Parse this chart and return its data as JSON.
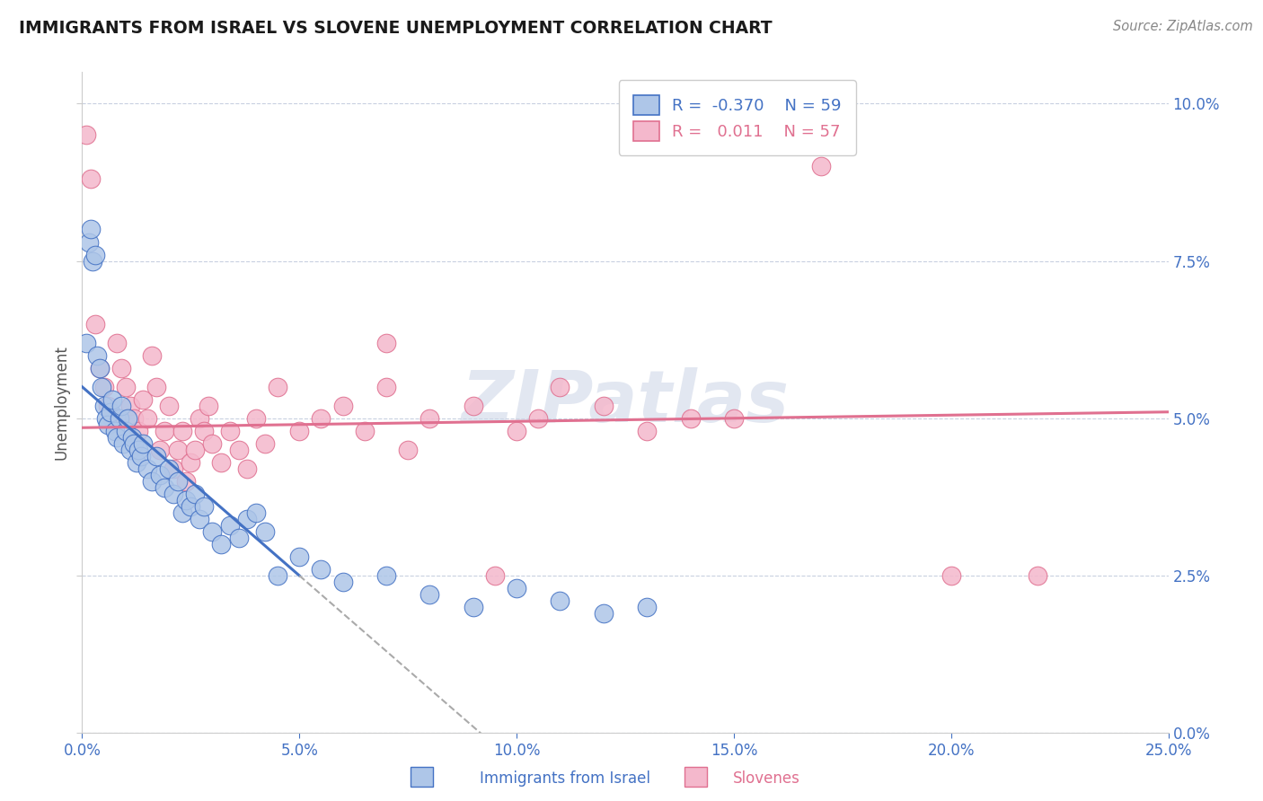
{
  "title": "IMMIGRANTS FROM ISRAEL VS SLOVENE UNEMPLOYMENT CORRELATION CHART",
  "source_text": "Source: ZipAtlas.com",
  "ylabel_label": "Unemployment",
  "legend_label1": "Immigrants from Israel",
  "legend_label2": "Slovenes",
  "R1": -0.37,
  "N1": 59,
  "R2": 0.011,
  "N2": 57,
  "color_blue": "#aec6e8",
  "color_pink": "#f4b8cc",
  "line_blue": "#4472c4",
  "line_pink": "#e07090",
  "watermark": "ZIPatlas",
  "xlim": [
    0.0,
    25.0
  ],
  "ylim": [
    0.0,
    10.5
  ],
  "xticks": [
    0.0,
    5.0,
    10.0,
    15.0,
    20.0,
    25.0
  ],
  "xticklabels": [
    "0.0%",
    "5.0%",
    "10.0%",
    "15.0%",
    "20.0%",
    "25.0%"
  ],
  "yticks": [
    0.0,
    2.5,
    5.0,
    7.5,
    10.0
  ],
  "yticklabels": [
    "0.0%",
    "2.5%",
    "5.0%",
    "7.5%",
    "10.0%"
  ],
  "figsize": [
    14.06,
    8.92
  ],
  "dpi": 100,
  "blue_x": [
    0.1,
    0.15,
    0.2,
    0.25,
    0.3,
    0.35,
    0.4,
    0.45,
    0.5,
    0.55,
    0.6,
    0.65,
    0.7,
    0.75,
    0.8,
    0.85,
    0.9,
    0.95,
    1.0,
    1.05,
    1.1,
    1.15,
    1.2,
    1.25,
    1.3,
    1.35,
    1.4,
    1.5,
    1.6,
    1.7,
    1.8,
    1.9,
    2.0,
    2.1,
    2.2,
    2.3,
    2.4,
    2.5,
    2.6,
    2.7,
    2.8,
    3.0,
    3.2,
    3.4,
    3.6,
    3.8,
    4.0,
    4.2,
    4.5,
    5.0,
    5.5,
    6.0,
    7.0,
    8.0,
    9.0,
    10.0,
    11.0,
    12.0,
    13.0
  ],
  "blue_y": [
    6.2,
    7.8,
    8.0,
    7.5,
    7.6,
    6.0,
    5.8,
    5.5,
    5.2,
    5.0,
    4.9,
    5.1,
    5.3,
    4.8,
    4.7,
    5.0,
    5.2,
    4.6,
    4.8,
    5.0,
    4.5,
    4.7,
    4.6,
    4.3,
    4.5,
    4.4,
    4.6,
    4.2,
    4.0,
    4.4,
    4.1,
    3.9,
    4.2,
    3.8,
    4.0,
    3.5,
    3.7,
    3.6,
    3.8,
    3.4,
    3.6,
    3.2,
    3.0,
    3.3,
    3.1,
    3.4,
    3.5,
    3.2,
    2.5,
    2.8,
    2.6,
    2.4,
    2.5,
    2.2,
    2.0,
    2.3,
    2.1,
    1.9,
    2.0
  ],
  "pink_x": [
    0.1,
    0.2,
    0.3,
    0.4,
    0.5,
    0.6,
    0.7,
    0.8,
    0.9,
    1.0,
    1.1,
    1.2,
    1.3,
    1.4,
    1.5,
    1.6,
    1.7,
    1.8,
    1.9,
    2.0,
    2.1,
    2.2,
    2.3,
    2.4,
    2.5,
    2.6,
    2.7,
    2.8,
    2.9,
    3.0,
    3.2,
    3.4,
    3.6,
    3.8,
    4.0,
    4.2,
    4.5,
    5.0,
    5.5,
    6.0,
    6.5,
    7.0,
    7.5,
    8.0,
    9.0,
    10.0,
    10.5,
    11.0,
    12.0,
    13.0,
    14.0,
    15.0,
    17.0,
    20.0,
    22.0,
    7.0,
    9.5
  ],
  "pink_y": [
    9.5,
    8.8,
    6.5,
    5.8,
    5.5,
    5.2,
    5.0,
    6.2,
    5.8,
    5.5,
    5.2,
    5.0,
    4.8,
    5.3,
    5.0,
    6.0,
    5.5,
    4.5,
    4.8,
    5.2,
    4.2,
    4.5,
    4.8,
    4.0,
    4.3,
    4.5,
    5.0,
    4.8,
    5.2,
    4.6,
    4.3,
    4.8,
    4.5,
    4.2,
    5.0,
    4.6,
    5.5,
    4.8,
    5.0,
    5.2,
    4.8,
    5.5,
    4.5,
    5.0,
    5.2,
    4.8,
    5.0,
    5.5,
    5.2,
    4.8,
    5.0,
    5.0,
    9.0,
    2.5,
    2.5,
    6.2,
    2.5
  ],
  "blue_trend_x0": 0.0,
  "blue_trend_y0": 5.5,
  "blue_trend_x1": 5.0,
  "blue_trend_y1": 2.5,
  "blue_solid_end": 5.0,
  "blue_dash_end": 25.0,
  "pink_trend_x0": 0.0,
  "pink_trend_y0": 4.85,
  "pink_trend_x1": 25.0,
  "pink_trend_y1": 5.1
}
